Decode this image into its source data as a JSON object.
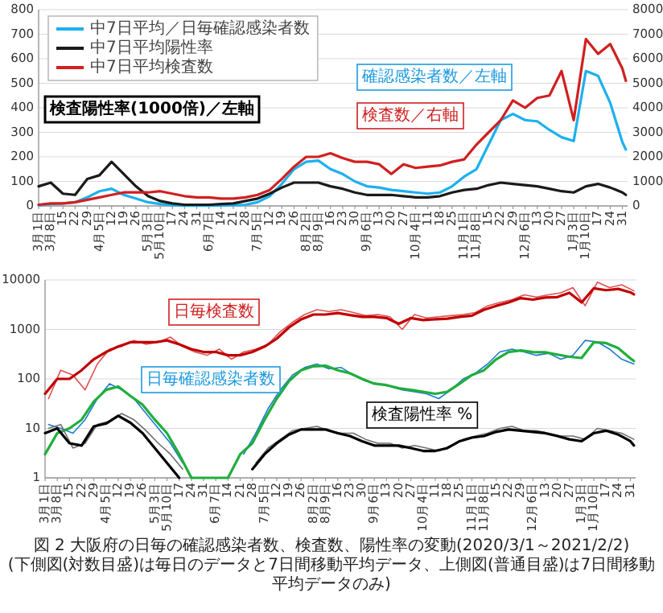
{
  "chart_data": [
    {
      "type": "line",
      "xlim": [
        "2020-03-01",
        "2021-02-03"
      ],
      "ylim": [
        0,
        800
      ],
      "yticks": [
        0,
        100,
        200,
        300,
        400,
        500,
        600,
        700,
        800
      ],
      "y2lim": [
        0,
        8000
      ],
      "y2ticks": [
        0,
        1000,
        2000,
        3000,
        4000,
        5000,
        6000,
        7000,
        8000
      ],
      "grid": "y",
      "legend": "top left",
      "xticks": [
        {
          "value": "2020-03-01",
          "label": "3月1日"
        },
        {
          "value": "2020-03-08",
          "label": "3月8日"
        },
        {
          "value": "2020-03-15",
          "label": "15"
        },
        {
          "value": "2020-03-22",
          "label": "22"
        },
        {
          "value": "2020-03-29",
          "label": "29"
        },
        {
          "value": "2020-04-05",
          "label": "4月5日"
        },
        {
          "value": "2020-04-12",
          "label": "12"
        },
        {
          "value": "2020-04-19",
          "label": "19"
        },
        {
          "value": "2020-04-26",
          "label": "26"
        },
        {
          "value": "2020-05-03",
          "label": "5月3日"
        },
        {
          "value": "2020-05-10",
          "label": "5月10日"
        },
        {
          "value": "2020-05-17",
          "label": "17"
        },
        {
          "value": "2020-05-24",
          "label": "24"
        },
        {
          "value": "2020-05-31",
          "label": "31"
        },
        {
          "value": "2020-06-07",
          "label": "6月7日"
        },
        {
          "value": "2020-06-14",
          "label": "14"
        },
        {
          "value": "2020-06-21",
          "label": "21"
        },
        {
          "value": "2020-06-28",
          "label": "28"
        },
        {
          "value": "2020-07-05",
          "label": "7月5日"
        },
        {
          "value": "2020-07-12",
          "label": "12"
        },
        {
          "value": "2020-07-19",
          "label": "19"
        },
        {
          "value": "2020-07-26",
          "label": "26"
        },
        {
          "value": "2020-08-02",
          "label": "8月2日"
        },
        {
          "value": "2020-08-09",
          "label": "8月9日"
        },
        {
          "value": "2020-08-16",
          "label": "16"
        },
        {
          "value": "2020-08-23",
          "label": "23"
        },
        {
          "value": "2020-08-30",
          "label": "30"
        },
        {
          "value": "2020-09-06",
          "label": "9月6日"
        },
        {
          "value": "2020-09-13",
          "label": "13"
        },
        {
          "value": "2020-09-20",
          "label": "20"
        },
        {
          "value": "2020-09-27",
          "label": "27"
        },
        {
          "value": "2020-10-04",
          "label": "10月4日"
        },
        {
          "value": "2020-10-11",
          "label": "11"
        },
        {
          "value": "2020-10-18",
          "label": "18"
        },
        {
          "value": "2020-10-25",
          "label": "25"
        },
        {
          "value": "2020-11-01",
          "label": "11月1日"
        },
        {
          "value": "2020-11-08",
          "label": "11月8日"
        },
        {
          "value": "2020-11-15",
          "label": "15"
        },
        {
          "value": "2020-11-22",
          "label": "22"
        },
        {
          "value": "2020-11-29",
          "label": "29"
        },
        {
          "value": "2020-12-06",
          "label": "12月6日"
        },
        {
          "value": "2020-12-13",
          "label": "13"
        },
        {
          "value": "2020-12-20",
          "label": "20"
        },
        {
          "value": "2020-12-27",
          "label": "27"
        },
        {
          "value": "2021-01-03",
          "label": "1月3日"
        },
        {
          "value": "2021-01-10",
          "label": "1月10日"
        },
        {
          "value": "2021-01-17",
          "label": "17"
        },
        {
          "value": "2021-01-24",
          "label": "24"
        },
        {
          "value": "2021-01-31",
          "label": "31"
        }
      ],
      "x": [
        "2020-03-01",
        "2020-03-08",
        "2020-03-15",
        "2020-03-22",
        "2020-03-29",
        "2020-04-05",
        "2020-04-12",
        "2020-04-19",
        "2020-04-26",
        "2020-05-03",
        "2020-05-10",
        "2020-05-17",
        "2020-05-24",
        "2020-05-31",
        "2020-06-07",
        "2020-06-14",
        "2020-06-21",
        "2020-06-28",
        "2020-07-05",
        "2020-07-12",
        "2020-07-19",
        "2020-07-26",
        "2020-08-02",
        "2020-08-09",
        "2020-08-16",
        "2020-08-23",
        "2020-08-30",
        "2020-09-06",
        "2020-09-13",
        "2020-09-20",
        "2020-09-27",
        "2020-10-04",
        "2020-10-11",
        "2020-10-18",
        "2020-10-25",
        "2020-11-01",
        "2020-11-08",
        "2020-11-15",
        "2020-11-22",
        "2020-11-29",
        "2020-12-06",
        "2020-12-13",
        "2020-12-20",
        "2020-12-27",
        "2021-01-03",
        "2021-01-10",
        "2021-01-17",
        "2021-01-24",
        "2021-01-31",
        "2021-02-02"
      ],
      "series": [
        {
          "name": "中7日平均／日毎確認感染者数",
          "color": "#1cb0f0",
          "values": [
            3,
            8,
            10,
            15,
            35,
            60,
            70,
            45,
            30,
            15,
            8,
            3,
            1,
            1,
            1,
            2,
            3,
            5,
            15,
            40,
            90,
            150,
            180,
            185,
            150,
            130,
            100,
            80,
            75,
            65,
            60,
            55,
            50,
            55,
            80,
            120,
            150,
            250,
            350,
            375,
            350,
            345,
            310,
            280,
            265,
            550,
            530,
            420,
            260,
            230
          ]
        },
        {
          "name": "中7日平均陽性率",
          "color": "#1a1a1a",
          "values": [
            80,
            95,
            50,
            45,
            110,
            125,
            180,
            130,
            80,
            40,
            20,
            10,
            5,
            5,
            5,
            8,
            10,
            20,
            30,
            50,
            75,
            95,
            95,
            95,
            80,
            70,
            55,
            45,
            45,
            45,
            40,
            35,
            35,
            40,
            55,
            65,
            70,
            85,
            95,
            90,
            85,
            80,
            70,
            60,
            55,
            80,
            90,
            75,
            55,
            45
          ]
        },
        {
          "name": "中7日平均検査数",
          "color": "#d02020",
          "axis": "y2",
          "values": [
            50,
            100,
            100,
            150,
            250,
            350,
            450,
            550,
            550,
            550,
            600,
            500,
            400,
            350,
            350,
            300,
            300,
            350,
            450,
            650,
            1100,
            1600,
            2000,
            2000,
            2150,
            1950,
            1800,
            1800,
            1700,
            1300,
            1700,
            1550,
            1600,
            1650,
            1800,
            1900,
            2500,
            3000,
            3500,
            4300,
            4000,
            4400,
            4500,
            5500,
            3500,
            6800,
            6200,
            6600,
            5600,
            5100
          ]
        }
      ],
      "annotations": [
        "検査陽性率(1000倍)／左軸",
        "検査数／右軸",
        "確認感染者数／左軸"
      ]
    },
    {
      "type": "line",
      "log": "y",
      "xlim": [
        "2020-03-01",
        "2021-02-03"
      ],
      "ylim": [
        1,
        10000
      ],
      "yticks": [
        1,
        10,
        100,
        1000,
        10000
      ],
      "grid": "y",
      "xticks": [
        {
          "value": "2020-03-01",
          "label": "3月1日"
        },
        {
          "value": "2020-03-08",
          "label": "3月8日"
        },
        {
          "value": "2020-03-15",
          "label": "15"
        },
        {
          "value": "2020-03-22",
          "label": "22"
        },
        {
          "value": "2020-03-29",
          "label": "29"
        },
        {
          "value": "2020-04-05",
          "label": "4月5日"
        },
        {
          "value": "2020-04-12",
          "label": "12"
        },
        {
          "value": "2020-04-19",
          "label": "19"
        },
        {
          "value": "2020-04-26",
          "label": "26"
        },
        {
          "value": "2020-05-03",
          "label": "5月3日"
        },
        {
          "value": "2020-05-10",
          "label": "5月10日"
        },
        {
          "value": "2020-05-17",
          "label": "17"
        },
        {
          "value": "2020-05-24",
          "label": "24"
        },
        {
          "value": "2020-05-31",
          "label": "31"
        },
        {
          "value": "2020-06-07",
          "label": "6月7日"
        },
        {
          "value": "2020-06-14",
          "label": "14"
        },
        {
          "value": "2020-06-21",
          "label": "21"
        },
        {
          "value": "2020-06-28",
          "label": "28"
        },
        {
          "value": "2020-07-05",
          "label": "7月5日"
        },
        {
          "value": "2020-07-12",
          "label": "12"
        },
        {
          "value": "2020-07-19",
          "label": "19"
        },
        {
          "value": "2020-07-26",
          "label": "26"
        },
        {
          "value": "2020-08-02",
          "label": "8月2日"
        },
        {
          "value": "2020-08-09",
          "label": "8月9日"
        },
        {
          "value": "2020-08-16",
          "label": "16"
        },
        {
          "value": "2020-08-23",
          "label": "23"
        },
        {
          "value": "2020-08-30",
          "label": "30"
        },
        {
          "value": "2020-09-06",
          "label": "9月6日"
        },
        {
          "value": "2020-09-13",
          "label": "13"
        },
        {
          "value": "2020-09-20",
          "label": "20"
        },
        {
          "value": "2020-09-27",
          "label": "27"
        },
        {
          "value": "2020-10-04",
          "label": "10月4日"
        },
        {
          "value": "2020-10-11",
          "label": "11"
        },
        {
          "value": "2020-10-18",
          "label": "18"
        },
        {
          "value": "2020-10-25",
          "label": "25"
        },
        {
          "value": "2020-11-01",
          "label": "11月1日"
        },
        {
          "value": "2020-11-08",
          "label": "11月8日"
        },
        {
          "value": "2020-11-15",
          "label": "15"
        },
        {
          "value": "2020-11-22",
          "label": "22"
        },
        {
          "value": "2020-11-29",
          "label": "29"
        },
        {
          "value": "2020-12-06",
          "label": "12月6日"
        },
        {
          "value": "2020-12-13",
          "label": "13"
        },
        {
          "value": "2020-12-20",
          "label": "20"
        },
        {
          "value": "2020-12-27",
          "label": "27"
        },
        {
          "value": "2021-01-03",
          "label": "1月3日"
        },
        {
          "value": "2021-01-10",
          "label": "1月10日"
        },
        {
          "value": "2021-01-17",
          "label": "17"
        },
        {
          "value": "2021-01-24",
          "label": "24"
        },
        {
          "value": "2021-01-31",
          "label": "31"
        }
      ],
      "x": [
        "2020-03-01",
        "2020-03-08",
        "2020-03-15",
        "2020-03-22",
        "2020-03-29",
        "2020-04-05",
        "2020-04-12",
        "2020-04-19",
        "2020-04-26",
        "2020-05-03",
        "2020-05-10",
        "2020-05-17",
        "2020-05-24",
        "2020-05-31",
        "2020-06-07",
        "2020-06-14",
        "2020-06-21",
        "2020-06-28",
        "2020-07-05",
        "2020-07-12",
        "2020-07-19",
        "2020-07-26",
        "2020-08-02",
        "2020-08-09",
        "2020-08-16",
        "2020-08-23",
        "2020-08-30",
        "2020-09-06",
        "2020-09-13",
        "2020-09-20",
        "2020-09-27",
        "2020-10-04",
        "2020-10-11",
        "2020-10-18",
        "2020-10-25",
        "2020-11-01",
        "2020-11-08",
        "2020-11-15",
        "2020-11-22",
        "2020-11-29",
        "2020-12-06",
        "2020-12-13",
        "2020-12-20",
        "2020-12-27",
        "2021-01-03",
        "2021-01-10",
        "2021-01-17",
        "2021-01-24",
        "2021-01-31",
        "2021-02-02"
      ],
      "series": [
        {
          "color": "#e05050",
          "x": [
            "2020-03-03",
            "2020-03-10",
            "2020-03-17",
            "2020-03-24",
            "2020-03-31",
            "2020-04-07",
            "2020-04-14",
            "2020-04-21",
            "2020-04-28",
            "2020-05-05",
            "2020-05-12",
            "2020-05-19",
            "2020-05-26",
            "2020-06-02",
            "2020-06-09",
            "2020-06-16",
            "2020-06-23",
            "2020-06-30",
            "2020-07-07",
            "2020-07-14",
            "2020-07-21",
            "2020-07-28",
            "2020-08-04",
            "2020-08-11",
            "2020-08-18",
            "2020-08-25",
            "2020-09-01",
            "2020-09-08",
            "2020-09-15",
            "2020-09-22",
            "2020-09-29",
            "2020-10-06",
            "2020-10-13",
            "2020-10-20",
            "2020-10-27",
            "2020-11-03",
            "2020-11-10",
            "2020-11-17",
            "2020-11-24",
            "2020-12-01",
            "2020-12-08",
            "2020-12-15",
            "2020-12-22",
            "2020-12-29",
            "2021-01-05",
            "2021-01-12",
            "2021-01-19",
            "2021-01-26",
            "2021-02-02"
          ],
          "values": [
            40,
            150,
            120,
            60,
            200,
            400,
            450,
            600,
            500,
            550,
            700,
            450,
            350,
            300,
            400,
            250,
            350,
            400,
            500,
            900,
            1400,
            2000,
            2500,
            2300,
            2500,
            2200,
            1900,
            2000,
            1800,
            1000,
            2000,
            1700,
            1800,
            1900,
            2000,
            2200,
            3000,
            3500,
            4000,
            5000,
            4500,
            5000,
            5500,
            7000,
            3000,
            9000,
            7000,
            8000,
            6000
          ]
        },
        {
          "color": "#c00000",
          "values": [
            50,
            100,
            100,
            150,
            250,
            350,
            450,
            550,
            550,
            550,
            600,
            500,
            400,
            350,
            350,
            300,
            300,
            350,
            450,
            650,
            1100,
            1600,
            2000,
            2000,
            2150,
            1950,
            1800,
            1800,
            1700,
            1300,
            1700,
            1550,
            1600,
            1650,
            1800,
            1900,
            2500,
            3000,
            3500,
            4300,
            4000,
            4400,
            4500,
            5500,
            3500,
            6800,
            6200,
            6600,
            5600,
            5100
          ]
        },
        {
          "color": "#1f7ad0",
          "x": [
            "2020-03-03",
            "2020-03-10",
            "2020-03-17",
            "2020-03-24",
            "2020-03-31",
            "2020-04-07",
            "2020-04-14",
            "2020-04-21",
            "2020-04-28",
            "2020-05-05",
            "2020-05-12",
            "2020-05-19",
            "2020-05-26",
            "2020-06-02",
            "2020-06-09",
            "2020-06-16",
            "2020-06-23",
            "2020-06-30",
            "2020-07-07",
            "2020-07-14",
            "2020-07-21",
            "2020-07-28",
            "2020-08-04",
            "2020-08-11",
            "2020-08-18",
            "2020-08-25",
            "2020-09-01",
            "2020-09-08",
            "2020-09-15",
            "2020-09-22",
            "2020-09-29",
            "2020-10-06",
            "2020-10-13",
            "2020-10-20",
            "2020-10-27",
            "2020-11-03",
            "2020-11-10",
            "2020-11-17",
            "2020-11-24",
            "2020-12-01",
            "2020-12-08",
            "2020-12-15",
            "2020-12-22",
            "2020-12-29",
            "2021-01-05",
            "2021-01-12",
            "2021-01-19",
            "2021-01-26",
            "2021-02-02"
          ],
          "values": [
            12,
            10,
            8,
            15,
            40,
            80,
            60,
            40,
            20,
            10,
            5,
            2,
            null,
            null,
            null,
            null,
            3,
            8,
            25,
            60,
            120,
            170,
            200,
            160,
            170,
            120,
            90,
            80,
            70,
            60,
            55,
            50,
            40,
            60,
            100,
            130,
            200,
            350,
            400,
            350,
            300,
            330,
            250,
            300,
            600,
            560,
            400,
            250,
            200
          ]
        },
        {
          "color": "#1fae3c",
          "values": [
            3,
            8,
            10,
            15,
            35,
            60,
            70,
            45,
            30,
            15,
            8,
            3,
            1,
            1,
            1,
            1,
            3,
            5,
            15,
            40,
            90,
            150,
            180,
            185,
            150,
            130,
            100,
            80,
            75,
            65,
            60,
            55,
            50,
            55,
            80,
            120,
            150,
            250,
            350,
            375,
            350,
            345,
            310,
            280,
            265,
            550,
            530,
            420,
            260,
            230
          ]
        },
        {
          "color": "#707070",
          "x": [
            "2020-03-03",
            "2020-03-10",
            "2020-03-17",
            "2020-03-24",
            "2020-03-31",
            "2020-04-07",
            "2020-04-14",
            "2020-04-21",
            "2020-04-28",
            "2020-05-05",
            "2020-05-12",
            "2020-05-19",
            "2020-05-26",
            "2020-06-02",
            "2020-06-09",
            "2020-06-16",
            "2020-06-23",
            "2020-06-30",
            "2020-07-07",
            "2020-07-14",
            "2020-07-21",
            "2020-07-28",
            "2020-08-04",
            "2020-08-11",
            "2020-08-18",
            "2020-08-25",
            "2020-09-01",
            "2020-09-08",
            "2020-09-15",
            "2020-09-22",
            "2020-09-29",
            "2020-10-06",
            "2020-10-13",
            "2020-10-20",
            "2020-10-27",
            "2020-11-03",
            "2020-11-10",
            "2020-11-17",
            "2020-11-24",
            "2020-12-01",
            "2020-12-08",
            "2020-12-15",
            "2020-12-22",
            "2020-12-29",
            "2021-01-05",
            "2021-01-12",
            "2021-01-19",
            "2021-01-26",
            "2021-02-02"
          ],
          "values": [
            10,
            12,
            4,
            5,
            12,
            14,
            20,
            15,
            9,
            5,
            3,
            1.5,
            null,
            null,
            null,
            null,
            null,
            2,
            4,
            6,
            9,
            10,
            11,
            9,
            8,
            8,
            6,
            5,
            5,
            4,
            4.5,
            4,
            3.5,
            4.5,
            6,
            7,
            8,
            10,
            11,
            9,
            9,
            8,
            7,
            7,
            6,
            10,
            9,
            8,
            6
          ]
        },
        {
          "color": "#000000",
          "values": [
            8,
            10,
            5,
            4.5,
            11,
            12.5,
            18,
            13,
            8,
            4,
            2,
            1,
            null,
            null,
            null,
            null,
            null,
            1.5,
            3,
            5,
            7.5,
            9.5,
            9.5,
            9.5,
            8,
            7,
            5.5,
            4.5,
            4.5,
            4.5,
            4,
            3.5,
            3.5,
            4,
            5.5,
            6.5,
            7,
            8.5,
            9.5,
            9,
            8.5,
            8,
            7,
            6,
            5.5,
            8,
            9,
            7.5,
            5.5,
            4.5
          ]
        }
      ],
      "annotations": [
        "日毎検査数",
        "日毎確認感染者数",
        "検査陽性率 %",
        "図 2 大阪府の日毎の確認感染者数、検査数、陽性率の変動(2020/3/1～2021/2/2)",
        "(下側図(対数目盛)は毎日のデータと7日間移動平均データ、上側図(普通目盛)は7日間移動平均データのみ)"
      ]
    }
  ]
}
